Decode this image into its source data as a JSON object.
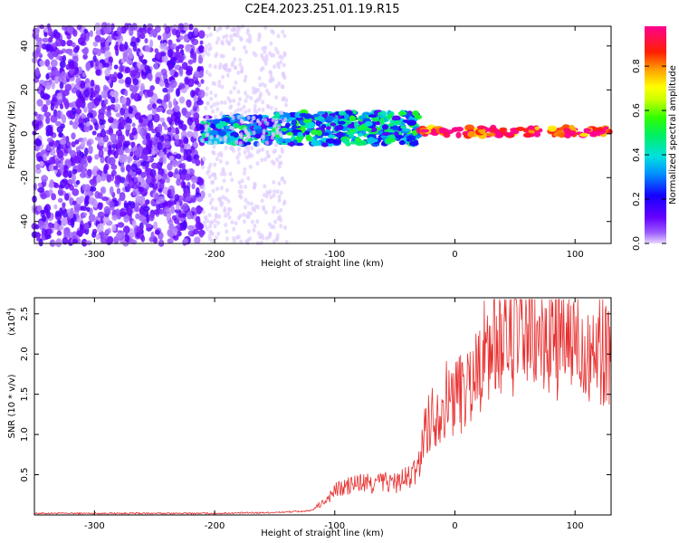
{
  "title": "C2E4.2023.251.01.19.R15",
  "colorbar": {
    "label": "Normalized spectral amplitude",
    "ticks": [
      "0.0",
      "0.2",
      "0.4",
      "0.6",
      "0.8"
    ],
    "tick_values": [
      0.0,
      0.2,
      0.4,
      0.6,
      0.8
    ],
    "range": [
      0,
      0.98
    ]
  },
  "chart_data": [
    {
      "type": "heatmap",
      "title": "C2E4.2023.251.01.19.R15",
      "xlabel": "Height of straight line (km)",
      "ylabel": "Frequency (Hz)",
      "xlim": [
        -350,
        130
      ],
      "ylim": [
        -50,
        49
      ],
      "xticks": [
        -300,
        -200,
        -100,
        0,
        100
      ],
      "xtick_labels": [
        "-300",
        "-200",
        "-100",
        "0",
        "100"
      ],
      "yticks": [
        -40,
        -20,
        0,
        20,
        40
      ],
      "ytick_labels": [
        "-40",
        "-20",
        "0",
        "20",
        "40"
      ],
      "colormap": "rainbow (violet to red)",
      "bands": [
        {
          "x_start": -350,
          "x_end": -210,
          "f_low": -50,
          "f_high": 49,
          "amplitude": 0.05,
          "note": "scattered noise"
        },
        {
          "x_start": -210,
          "x_end": -150,
          "f_low": -5,
          "f_high": 8,
          "amplitude": 0.3
        },
        {
          "x_start": -150,
          "x_end": -30,
          "f_low": -5,
          "f_high": 10,
          "amplitude": 0.35
        },
        {
          "x_start": -30,
          "x_end": 130,
          "f_low": -1,
          "f_high": 3,
          "amplitude": 0.95
        }
      ]
    },
    {
      "type": "line",
      "xlabel": "Height of straight line (km)",
      "ylabel": "SNR (10 * v/v)",
      "y_multiplier_label": "(x10",
      "y_multiplier_exp": "4",
      "xlim": [
        -350,
        130
      ],
      "ylim": [
        0,
        2.7
      ],
      "xticks": [
        -300,
        -200,
        -100,
        0,
        100
      ],
      "xtick_labels": [
        "-300",
        "-200",
        "-100",
        "0",
        "100"
      ],
      "yticks": [
        0.5,
        1.0,
        1.5,
        2.0,
        2.5
      ],
      "ytick_labels": [
        "0.5",
        "1.0",
        "1.5",
        "2.0",
        "2.5"
      ],
      "series": [
        {
          "color": "#e83030",
          "x": [
            -350,
            -300,
            -250,
            -200,
            -150,
            -120,
            -110,
            -100,
            -90,
            -80,
            -70,
            -60,
            -50,
            -40,
            -35,
            -30,
            -25,
            -20,
            -15,
            -10,
            -5,
            0,
            5,
            10,
            15,
            20,
            25,
            30,
            35,
            40,
            50,
            60,
            70,
            80,
            90,
            100,
            110,
            120,
            130
          ],
          "y": [
            0.02,
            0.02,
            0.02,
            0.02,
            0.03,
            0.05,
            0.15,
            0.3,
            0.35,
            0.4,
            0.38,
            0.42,
            0.4,
            0.45,
            0.5,
            0.6,
            1.1,
            1.2,
            1.3,
            1.4,
            1.45,
            1.5,
            1.55,
            1.6,
            1.7,
            1.9,
            2.0,
            2.1,
            2.2,
            2.2,
            2.25,
            2.2,
            2.15,
            2.2,
            2.1,
            2.15,
            2.1,
            2.05,
            2.1
          ]
        }
      ]
    }
  ]
}
